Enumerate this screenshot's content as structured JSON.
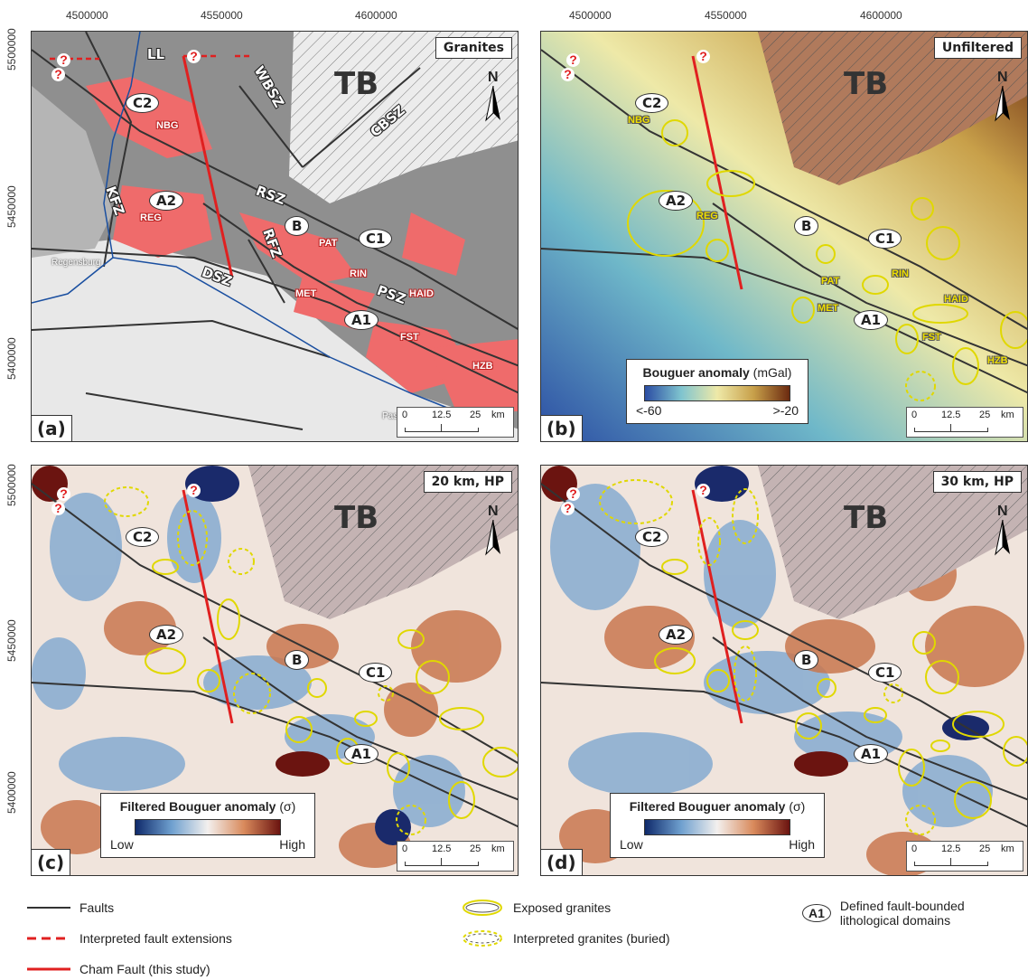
{
  "axes": {
    "x_ticks": [
      "4500000",
      "4550000",
      "4600000"
    ],
    "y_ticks": [
      "5500000",
      "5450000",
      "5400000"
    ]
  },
  "panels": [
    {
      "letter": "(a)",
      "title": "Granites"
    },
    {
      "letter": "(b)",
      "title": "Unfiltered"
    },
    {
      "letter": "(c)",
      "title": "20 km, HP"
    },
    {
      "letter": "(d)",
      "title": "30 km, HP"
    }
  ],
  "map_labels": {
    "basin": "TB",
    "north": "N",
    "domains": [
      "C2",
      "A2",
      "B",
      "C1",
      "A1"
    ],
    "faults": [
      "LL",
      "WBSZ",
      "CBSZ",
      "RSZ",
      "KFZ",
      "RFZ",
      "DSZ",
      "PSZ"
    ],
    "granites": [
      "NBG",
      "REG",
      "PAT",
      "RIN",
      "MET",
      "HAID",
      "FST",
      "HZB"
    ],
    "question": "?",
    "towns": [
      "Regensburg",
      "Pas"
    ]
  },
  "scale_bar": {
    "zero": "0",
    "mid": "12.5",
    "end": "25",
    "unit": "km"
  },
  "colorbars": {
    "unfiltered": {
      "title": "Bouguer anomaly",
      "unit": "(mGal)",
      "low": "<-60",
      "high": ">-20",
      "colors": [
        "#2b4da3",
        "#7fc4cf",
        "#eee9a8",
        "#c8a04a",
        "#6b2a10"
      ]
    },
    "filtered": {
      "title": "Filtered Bouguer anomaly",
      "unit": "(σ)",
      "low": "Low",
      "high": "High",
      "colors": [
        "#0f2a6b",
        "#6fa0cf",
        "#f3f0ee",
        "#d98a5c",
        "#6b1410"
      ]
    }
  },
  "legend": {
    "faults": "Faults",
    "interpreted": "Interpreted fault extensions",
    "cham": "Cham Fault (this study)",
    "exposed": "Exposed granites",
    "buried": "Interpreted granites (buried)",
    "domain_symbol": "A1",
    "domain_desc_line1": "Defined fault-bounded",
    "domain_desc_line2": "lithological domains"
  },
  "colors": {
    "fault": "#333333",
    "cham": "#e02020",
    "granite_fill": "#f07070",
    "granite_outline": "#e0d800"
  }
}
